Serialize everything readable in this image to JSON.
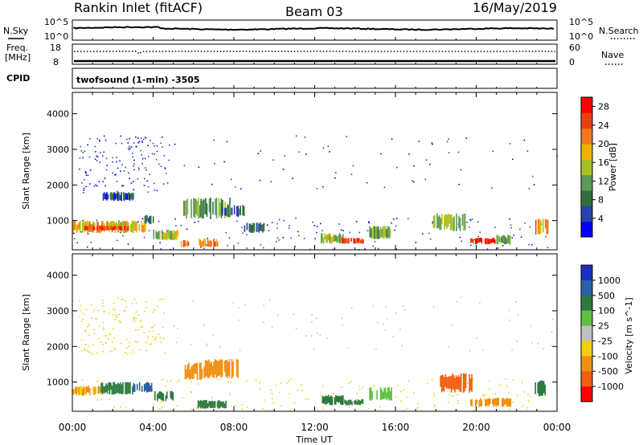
{
  "header": {
    "station": "Rankin Inlet (fitACF)",
    "beam": "Beam 03",
    "date": "16/May/2019"
  },
  "summary_panels": {
    "nsky_label": "N.Sky",
    "nsky_ticks": [
      "10^5",
      "10^0"
    ],
    "nsearch_label": "N.Search",
    "nsearch_ticks": [
      "10^5",
      "10^0"
    ],
    "freq_label": "Freq.",
    "freq_unit": "[MHz]",
    "freq_ticks": [
      "18",
      "8"
    ],
    "nave_label": "Nave",
    "nave_ticks": [
      "60",
      "0"
    ],
    "cpid_label": "CPID",
    "cpid_value": "twofsound (1-min) -3505"
  },
  "colors": {
    "power_scale": [
      "#0000ff",
      "#2840b0",
      "#2f6f3c",
      "#5a9a5a",
      "#a8c020",
      "#f0b000",
      "#f07820",
      "#e84010",
      "#ff0000"
    ],
    "velocity_scale": [
      "#1a2ec8",
      "#2c5faa",
      "#2d7a40",
      "#5cc040",
      "#c0c0c0",
      "#f0d010",
      "#f09010",
      "#f06010",
      "#ff0000"
    ]
  },
  "chart_data": [
    {
      "type": "heatmap",
      "panel": "power",
      "ylabel": "Slant Range [km]",
      "xlabel": "Time UT",
      "x_ticks": [
        "00:00",
        "04:00",
        "08:00",
        "12:00",
        "16:00",
        "20:00",
        "00:00"
      ],
      "y_ticks": [
        "1000",
        "2000",
        "3000",
        "4000"
      ],
      "ylim": [
        180,
        4600
      ],
      "xlim_hours": [
        0,
        24
      ],
      "colorbar": {
        "label": "Power [dB]",
        "ticks": [
          "4",
          "8",
          "12",
          "16",
          "20",
          "24",
          "28"
        ],
        "range": [
          0,
          30
        ]
      },
      "patches": [
        {
          "t0": 0.0,
          "t1": 3.6,
          "r0": 650,
          "r1": 1000,
          "value": 18
        },
        {
          "t0": 0.6,
          "t1": 2.8,
          "r0": 720,
          "r1": 860,
          "value": 25
        },
        {
          "t0": 1.5,
          "t1": 3.0,
          "r0": 1550,
          "r1": 1800,
          "value": 6
        },
        {
          "t0": 3.5,
          "t1": 4.0,
          "r0": 900,
          "r1": 1150,
          "value": 8
        },
        {
          "t0": 4.0,
          "t1": 5.2,
          "r0": 450,
          "r1": 750,
          "value": 14
        },
        {
          "t0": 5.3,
          "t1": 5.8,
          "r0": 250,
          "r1": 450,
          "value": 22
        },
        {
          "t0": 5.5,
          "t1": 7.8,
          "r0": 1050,
          "r1": 1650,
          "value": 12
        },
        {
          "t0": 6.2,
          "t1": 7.2,
          "r0": 250,
          "r1": 500,
          "value": 20
        },
        {
          "t0": 7.4,
          "t1": 8.5,
          "r0": 1100,
          "r1": 1450,
          "value": 8
        },
        {
          "t0": 8.5,
          "t1": 9.5,
          "r0": 650,
          "r1": 950,
          "value": 8
        },
        {
          "t0": 12.3,
          "t1": 13.4,
          "r0": 350,
          "r1": 650,
          "value": 14
        },
        {
          "t0": 13.3,
          "t1": 14.4,
          "r0": 350,
          "r1": 520,
          "value": 24
        },
        {
          "t0": 14.7,
          "t1": 15.8,
          "r0": 480,
          "r1": 850,
          "value": 12
        },
        {
          "t0": 17.8,
          "t1": 19.5,
          "r0": 700,
          "r1": 1200,
          "value": 14
        },
        {
          "t0": 19.7,
          "t1": 20.9,
          "r0": 330,
          "r1": 520,
          "value": 27
        },
        {
          "t0": 21.0,
          "t1": 21.7,
          "r0": 330,
          "r1": 600,
          "value": 12
        },
        {
          "t0": 22.8,
          "t1": 23.6,
          "r0": 600,
          "r1": 1050,
          "value": 20
        }
      ],
      "scatter_bands": [
        {
          "t0": 0.3,
          "t1": 4.6,
          "r0": 1800,
          "r1": 3400,
          "value": 4,
          "count": 140
        },
        {
          "t0": 4.5,
          "t1": 24.0,
          "r0": 1900,
          "r1": 3400,
          "value": 4,
          "count": 70
        },
        {
          "t0": 0.0,
          "t1": 24.0,
          "r0": 200,
          "r1": 1100,
          "value": 4,
          "count": 160
        }
      ]
    },
    {
      "type": "heatmap",
      "panel": "velocity",
      "ylabel": "Slant Range [km]",
      "xlabel": "Time UT",
      "x_ticks": [
        "00:00",
        "04:00",
        "08:00",
        "12:00",
        "16:00",
        "20:00",
        "00:00"
      ],
      "y_ticks": [
        "1000",
        "2000",
        "3000",
        "4000"
      ],
      "ylim": [
        180,
        4600
      ],
      "xlim_hours": [
        0,
        24
      ],
      "colorbar": {
        "label": "Velocity [m s^-1]",
        "ticks": [
          "1000",
          "500",
          "100",
          "25",
          "-25",
          "-100",
          "-500",
          "-1000"
        ]
      },
      "patches": [
        {
          "t0": 0.0,
          "t1": 1.4,
          "r0": 620,
          "r1": 900,
          "value": -100
        },
        {
          "t0": 1.4,
          "t1": 3.0,
          "r0": 650,
          "r1": 1000,
          "value": 200
        },
        {
          "t0": 3.0,
          "t1": 3.9,
          "r0": 700,
          "r1": 1000,
          "value": 800
        },
        {
          "t0": 4.0,
          "t1": 5.0,
          "r0": 450,
          "r1": 750,
          "value": 200
        },
        {
          "t0": 5.5,
          "t1": 6.5,
          "r0": 1050,
          "r1": 1550,
          "value": -200
        },
        {
          "t0": 6.5,
          "t1": 8.2,
          "r0": 1100,
          "r1": 1650,
          "value": -300
        },
        {
          "t0": 6.2,
          "t1": 7.6,
          "r0": 250,
          "r1": 500,
          "value": 200
        },
        {
          "t0": 12.3,
          "t1": 13.4,
          "r0": 350,
          "r1": 650,
          "value": 200
        },
        {
          "t0": 13.4,
          "t1": 14.4,
          "r0": 350,
          "r1": 520,
          "value": 150
        },
        {
          "t0": 14.7,
          "t1": 15.8,
          "r0": 480,
          "r1": 850,
          "value": 60
        },
        {
          "t0": 18.2,
          "t1": 19.8,
          "r0": 700,
          "r1": 1250,
          "value": -800
        },
        {
          "t0": 19.7,
          "t1": 21.7,
          "r0": 300,
          "r1": 560,
          "value": -250
        },
        {
          "t0": 22.9,
          "t1": 23.6,
          "r0": 600,
          "r1": 1050,
          "value": 200
        }
      ],
      "scatter_bands": [
        {
          "t0": 0.3,
          "t1": 4.6,
          "r0": 1800,
          "r1": 3400,
          "value": -60,
          "count": 140
        },
        {
          "t0": 4.5,
          "t1": 24.0,
          "r0": 1900,
          "r1": 3400,
          "value": 10,
          "count": 70
        },
        {
          "t0": 0.0,
          "t1": 24.0,
          "r0": 200,
          "r1": 1100,
          "value": -60,
          "count": 160
        }
      ]
    }
  ]
}
